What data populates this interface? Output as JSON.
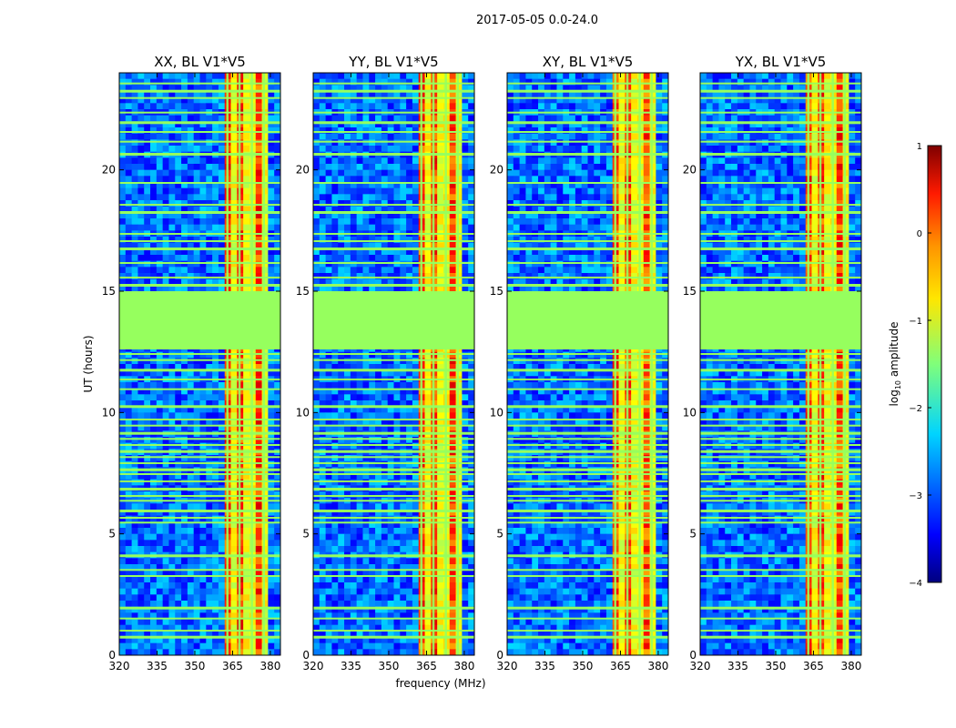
{
  "figure": {
    "suptitle": "2017-05-05 0.0-24.0",
    "xlabel": "frequency (MHz)",
    "ylabel": "UT (hours)"
  },
  "chart_data": [
    {
      "type": "heatmap",
      "title": "XX, BL V1*V5",
      "xlabel": "frequency (MHz)",
      "ylabel": "UT (hours)",
      "xlim": [
        320,
        384
      ],
      "ylim": [
        0,
        24
      ],
      "xticks": [
        320,
        335,
        350,
        365,
        380
      ],
      "yticks": [
        0,
        5,
        10,
        15,
        20
      ],
      "rfi_band_mhz": [
        361,
        379
      ],
      "flagged_hours": [
        12.6,
        15.0
      ],
      "peak_log_amplitude": 0.4
    },
    {
      "type": "heatmap",
      "title": "YY, BL V1*V5",
      "xlabel": "frequency (MHz)",
      "ylabel": "UT (hours)",
      "xlim": [
        320,
        384
      ],
      "ylim": [
        0,
        24
      ],
      "xticks": [
        320,
        335,
        350,
        365,
        380
      ],
      "yticks": [
        0,
        5,
        10,
        15,
        20
      ],
      "rfi_band_mhz": [
        361,
        379
      ],
      "flagged_hours": [
        12.6,
        15.0
      ],
      "peak_log_amplitude": 0.3
    },
    {
      "type": "heatmap",
      "title": "XY, BL V1*V5",
      "xlabel": "frequency (MHz)",
      "ylabel": "UT (hours)",
      "xlim": [
        320,
        384
      ],
      "ylim": [
        0,
        24
      ],
      "xticks": [
        320,
        335,
        350,
        365,
        380
      ],
      "yticks": [
        0,
        5,
        10,
        15,
        20
      ],
      "rfi_band_mhz": [
        361,
        379
      ],
      "flagged_hours": [
        12.6,
        15.0
      ],
      "peak_log_amplitude": 0.0
    },
    {
      "type": "heatmap",
      "title": "YX, BL V1*V5",
      "xlabel": "frequency (MHz)",
      "ylabel": "UT (hours)",
      "xlim": [
        320,
        384
      ],
      "ylim": [
        0,
        24
      ],
      "xticks": [
        320,
        335,
        350,
        365,
        380
      ],
      "yticks": [
        0,
        5,
        10,
        15,
        20
      ],
      "rfi_band_mhz": [
        361,
        379
      ],
      "flagged_hours": [
        12.6,
        15.0
      ],
      "peak_log_amplitude": 0.2
    }
  ],
  "colorbar": {
    "label": "log10 amplitude",
    "label_base": "log",
    "label_sub": "10",
    "label_rest": " amplitude",
    "range": [
      -4,
      1
    ],
    "ticks": [
      -4,
      -3,
      -2,
      -1,
      0,
      1
    ],
    "tick_labels": [
      "−4",
      "−3",
      "−2",
      "−1",
      "0",
      "1"
    ],
    "colormap": "jet"
  },
  "colors": {
    "flagged": "#96ff5e",
    "background_low": "#0a2fe0",
    "rfi_high": "#ff7a00"
  }
}
